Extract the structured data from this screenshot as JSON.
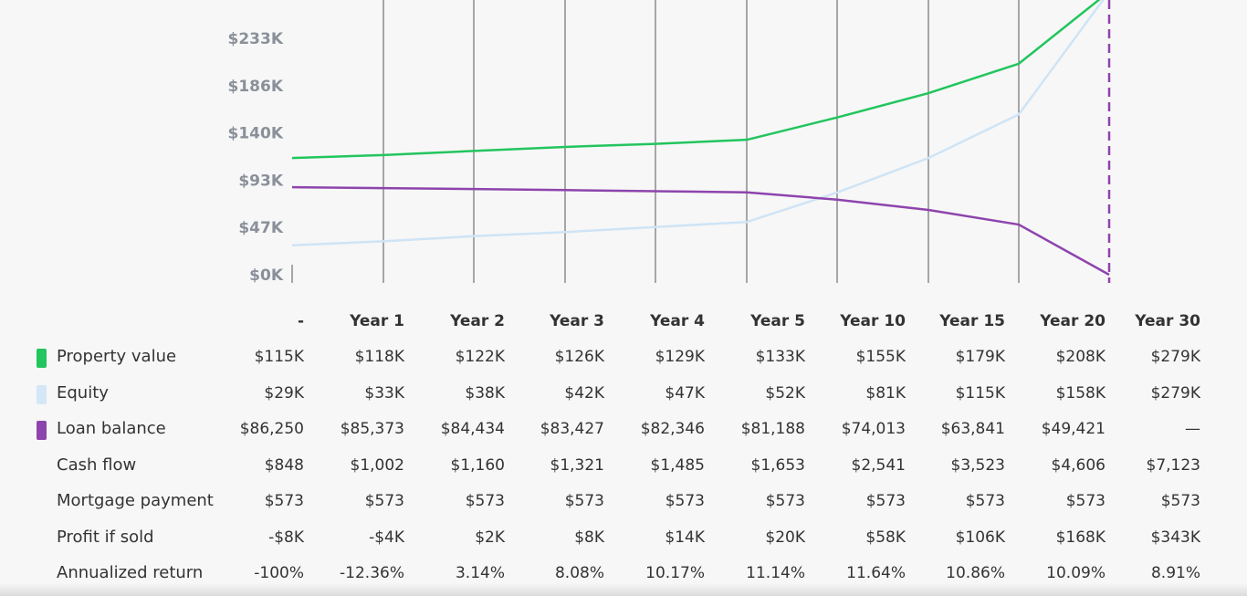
{
  "chart_data": {
    "type": "line",
    "categories": [
      "-",
      "Year 1",
      "Year 2",
      "Year 3",
      "Year 4",
      "Year 5",
      "Year 10",
      "Year 15",
      "Year 20",
      "Year 30"
    ],
    "y_ticks": [
      "$0K",
      "$47K",
      "$93K",
      "$140K",
      "$186K",
      "$233K"
    ],
    "y_tick_values": [
      0,
      47,
      93,
      140,
      186,
      233
    ],
    "ylim": [
      0,
      233
    ],
    "grid": true,
    "series": [
      {
        "name": "Property value",
        "color": "#22c55e",
        "values": [
          115,
          118,
          122,
          126,
          129,
          133,
          155,
          179,
          208,
          279
        ]
      },
      {
        "name": "Equity",
        "color": "#cfe4f5",
        "values": [
          29,
          33,
          38,
          42,
          47,
          52,
          81,
          115,
          158,
          279
        ]
      },
      {
        "name": "Loan balance",
        "color": "#8e44ad",
        "values": [
          86.25,
          85.373,
          84.434,
          83.427,
          82.346,
          81.188,
          74.013,
          63.841,
          49.421,
          0
        ]
      }
    ]
  },
  "table": {
    "headers": [
      "-",
      "Year 1",
      "Year 2",
      "Year 3",
      "Year 4",
      "Year 5",
      "Year 10",
      "Year 15",
      "Year 20",
      "Year 30"
    ],
    "rows": [
      {
        "label": "Property value",
        "swatch": "#22c55e",
        "values": [
          "$115K",
          "$118K",
          "$122K",
          "$126K",
          "$129K",
          "$133K",
          "$155K",
          "$179K",
          "$208K",
          "$279K"
        ]
      },
      {
        "label": "Equity",
        "swatch": "#d4e7f7",
        "values": [
          "$29K",
          "$33K",
          "$38K",
          "$42K",
          "$47K",
          "$52K",
          "$81K",
          "$115K",
          "$158K",
          "$279K"
        ]
      },
      {
        "label": "Loan balance",
        "swatch": "#8e44ad",
        "values": [
          "$86,250",
          "$85,373",
          "$84,434",
          "$83,427",
          "$82,346",
          "$81,188",
          "$74,013",
          "$63,841",
          "$49,421",
          "—"
        ]
      },
      {
        "label": "Cash flow",
        "swatch": "",
        "values": [
          "$848",
          "$1,002",
          "$1,160",
          "$1,321",
          "$1,485",
          "$1,653",
          "$2,541",
          "$3,523",
          "$4,606",
          "$7,123"
        ]
      },
      {
        "label": "Mortgage payment",
        "swatch": "",
        "values": [
          "$573",
          "$573",
          "$573",
          "$573",
          "$573",
          "$573",
          "$573",
          "$573",
          "$573",
          "$573"
        ]
      },
      {
        "label": "Profit if sold",
        "swatch": "",
        "values": [
          "-$8K",
          "-$4K",
          "$2K",
          "$8K",
          "$14K",
          "$20K",
          "$58K",
          "$106K",
          "$168K",
          "$343K"
        ]
      },
      {
        "label": "Annualized return",
        "swatch": "",
        "values": [
          "-100%",
          "-12.36%",
          "3.14%",
          "8.08%",
          "10.17%",
          "11.14%",
          "11.64%",
          "10.86%",
          "10.09%",
          "8.91%"
        ]
      }
    ]
  }
}
